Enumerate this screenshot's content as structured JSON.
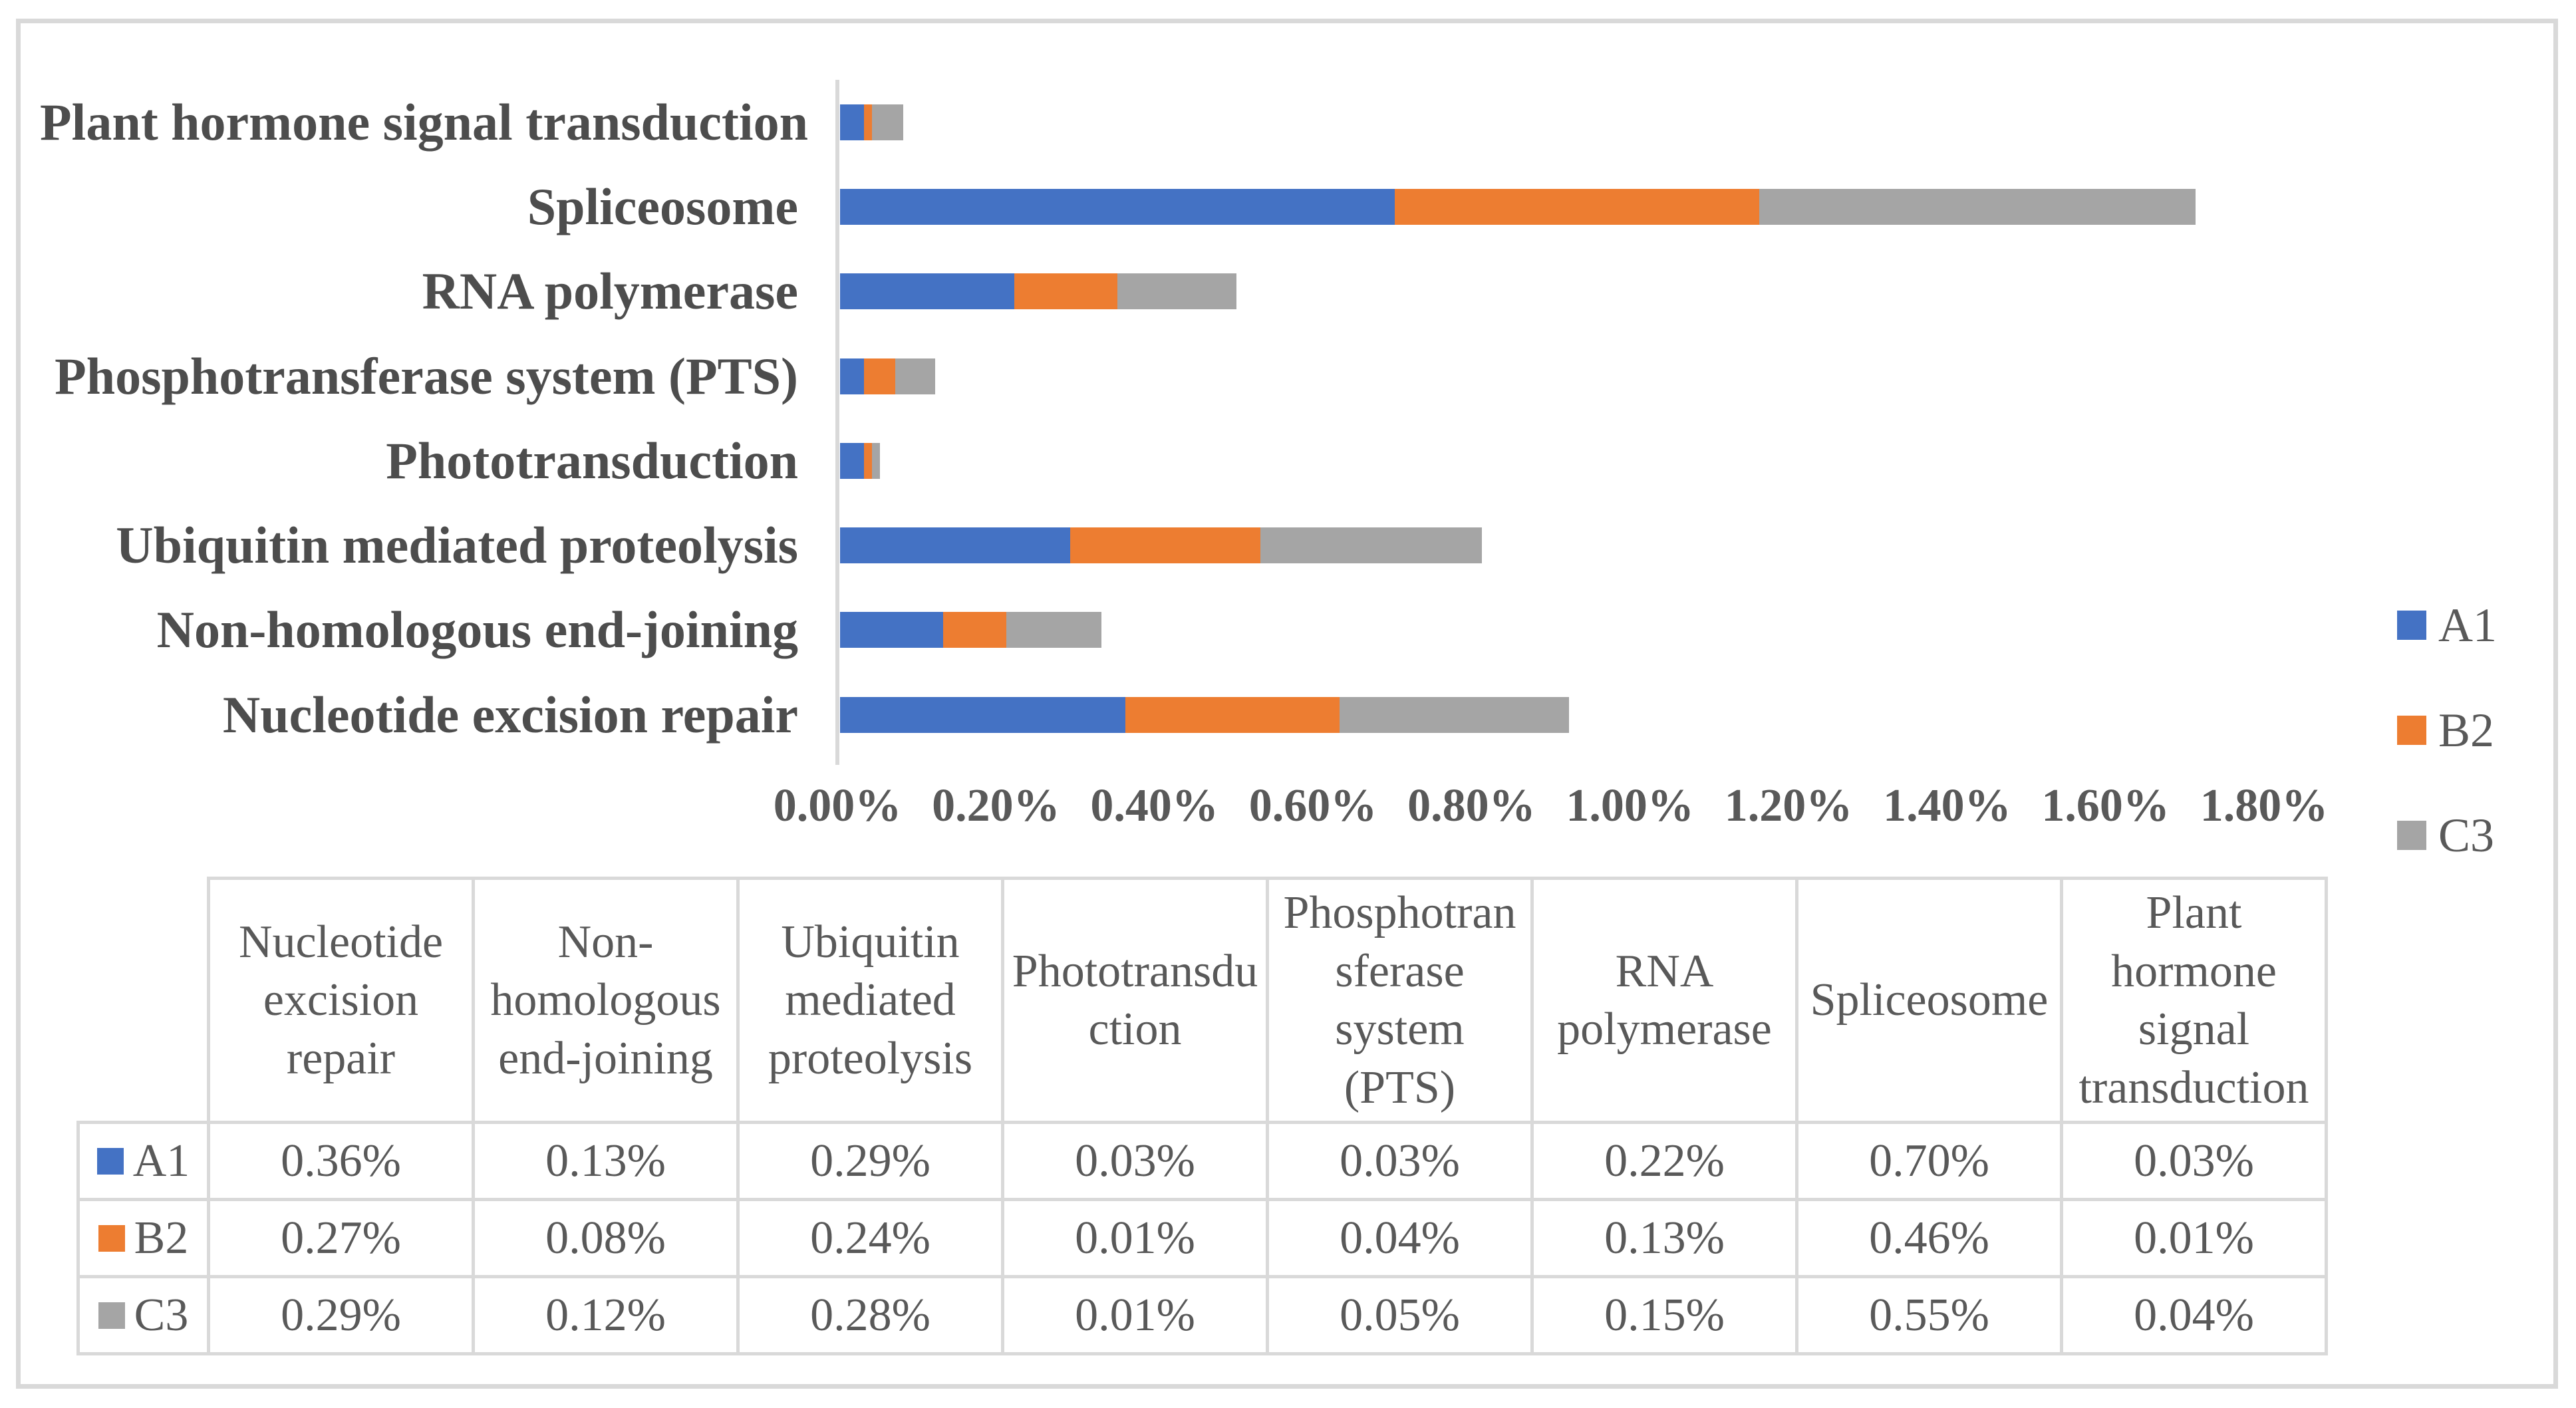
{
  "figure": {
    "background": "#FFFFFF",
    "frame_border_color": "#D9D9D9"
  },
  "colors": {
    "series_a1": "#4472C4",
    "series_b2": "#ED7D31",
    "series_c3": "#A5A5A5",
    "axis_line": "#D9D9D9",
    "table_border": "#D9D9D9",
    "category_label_text": "#4D4D4D",
    "body_text": "#595959"
  },
  "chart_data": {
    "type": "bar",
    "orientation": "horizontal",
    "stacked": true,
    "title": "",
    "xlabel": "",
    "ylabel": "",
    "grid": false,
    "categories": [
      "Plant hormone signal transduction",
      "Spliceosome",
      "RNA polymerase",
      "Phosphotransferase system (PTS)",
      "Phototransduction",
      "Ubiquitin mediated proteolysis",
      "Non-homologous end-joining",
      "Nucleotide excision repair"
    ],
    "series": [
      {
        "name": "A1",
        "color": "#4472C4",
        "values_percent": [
          0.03,
          0.7,
          0.22,
          0.03,
          0.03,
          0.29,
          0.13,
          0.36
        ]
      },
      {
        "name": "B2",
        "color": "#ED7D31",
        "values_percent": [
          0.01,
          0.46,
          0.13,
          0.04,
          0.01,
          0.24,
          0.08,
          0.27
        ]
      },
      {
        "name": "C3",
        "color": "#A5A5A5",
        "values_percent": [
          0.04,
          0.55,
          0.15,
          0.05,
          0.01,
          0.28,
          0.12,
          0.29
        ]
      }
    ],
    "x_axis": {
      "min_percent": 0,
      "max_percent": 1.8,
      "step_percent": 0.2,
      "tick_labels": [
        "0.00%",
        "0.20%",
        "0.40%",
        "0.60%",
        "0.80%",
        "1.00%",
        "1.20%",
        "1.40%",
        "1.60%",
        "1.80%"
      ]
    },
    "legend_position": "right"
  },
  "legend": {
    "items": [
      {
        "label": "A1",
        "color": "#4472C4"
      },
      {
        "label": "B2",
        "color": "#ED7D31"
      },
      {
        "label": "C3",
        "color": "#A5A5A5"
      }
    ]
  },
  "table": {
    "corner_cell": "",
    "column_headers": [
      "Nucleotide excision repair",
      "Non-homologous end-joining",
      "Ubiquitin mediated proteolysis",
      "Phototransduction",
      "Phosphotransferase system (PTS)",
      "RNA polymerase",
      "Spliceosome",
      "Plant hormone signal transduction"
    ],
    "rows": [
      {
        "label": "A1",
        "swatch_color": "#4472C4",
        "values": [
          "0.36%",
          "0.13%",
          "0.29%",
          "0.03%",
          "0.03%",
          "0.22%",
          "0.70%",
          "0.03%"
        ]
      },
      {
        "label": "B2",
        "swatch_color": "#ED7D31",
        "values": [
          "0.27%",
          "0.08%",
          "0.24%",
          "0.01%",
          "0.04%",
          "0.13%",
          "0.46%",
          "0.01%"
        ]
      },
      {
        "label": "C3",
        "swatch_color": "#A5A5A5",
        "values": [
          "0.29%",
          "0.12%",
          "0.28%",
          "0.01%",
          "0.05%",
          "0.15%",
          "0.55%",
          "0.04%"
        ]
      }
    ]
  }
}
